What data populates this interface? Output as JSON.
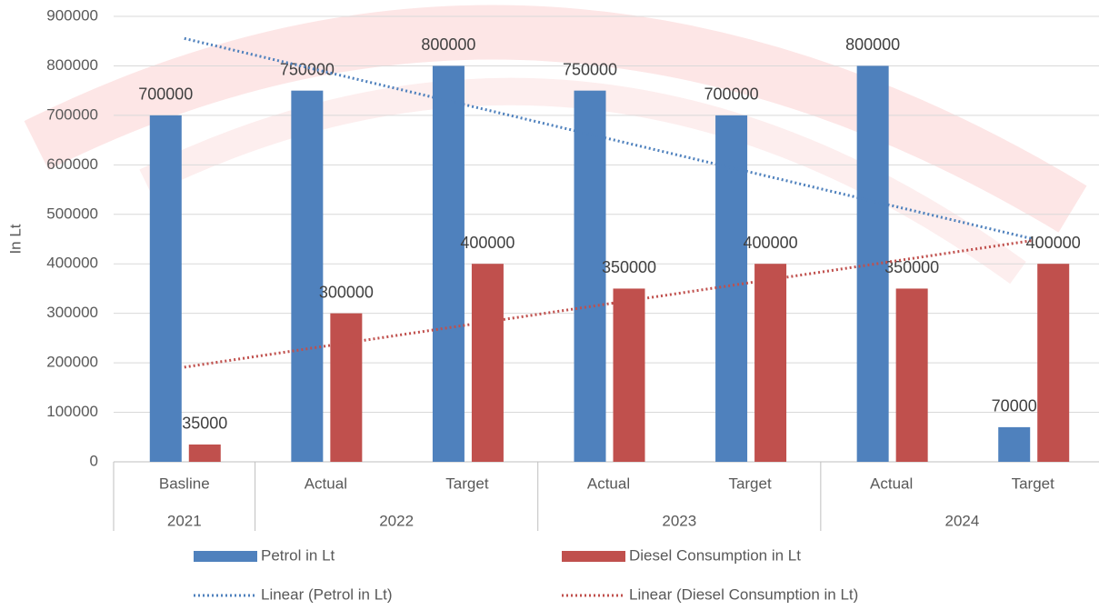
{
  "chart_data": {
    "type": "bar",
    "y_label": "In Lt",
    "categories": [
      "Basline",
      "Actual",
      "Target",
      "Actual",
      "Target",
      "Actual",
      "Target"
    ],
    "groups": [
      {
        "label": "2021",
        "span": 1
      },
      {
        "label": "2022",
        "span": 2
      },
      {
        "label": "2023",
        "span": 2
      },
      {
        "label": "2024",
        "span": 2
      }
    ],
    "series": [
      {
        "name": "Petrol in Lt",
        "color": "#4f81bd",
        "values": [
          700000,
          750000,
          800000,
          750000,
          700000,
          800000,
          70000
        ]
      },
      {
        "name": "Diesel Consumption in Lt",
        "color": "#c0504d",
        "values": [
          35000,
          300000,
          400000,
          350000,
          400000,
          350000,
          400000
        ]
      }
    ],
    "trendlines": [
      {
        "name": "Linear (Petrol in Lt)",
        "series": 0,
        "color": "#4f81bd",
        "style": "dotted"
      },
      {
        "name": "Linear (Diesel Consumption in Lt)",
        "series": 1,
        "color": "#c0504d",
        "style": "dotted"
      }
    ],
    "ylim": [
      0,
      900000
    ],
    "yticks": [
      0,
      100000,
      200000,
      300000,
      400000,
      500000,
      600000,
      700000,
      800000,
      900000
    ],
    "grid": true,
    "data_labels": true,
    "legend": "bottom"
  }
}
